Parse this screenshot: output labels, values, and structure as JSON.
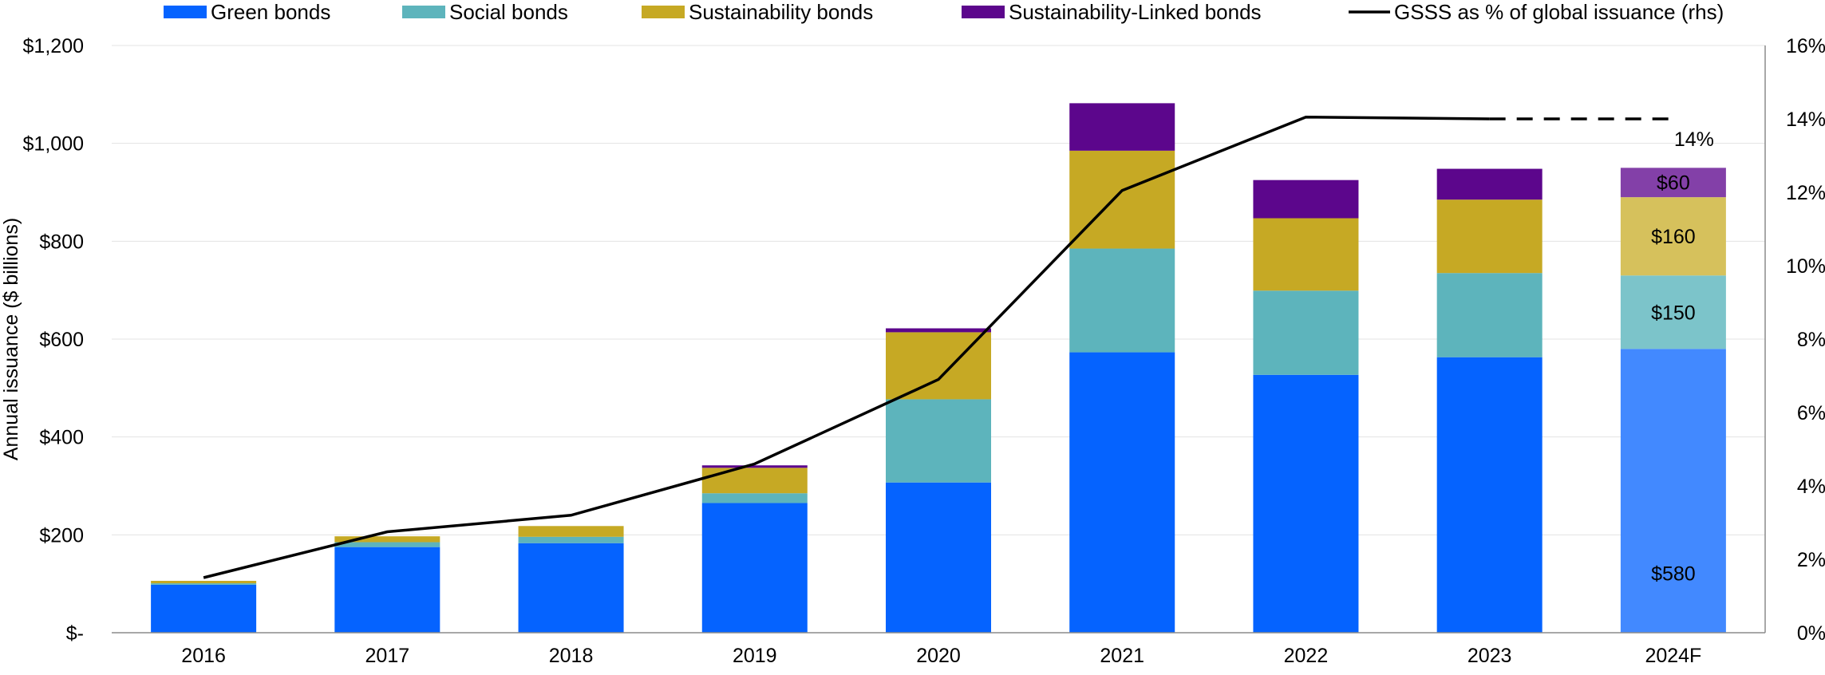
{
  "chart_data": {
    "type": "bar",
    "stacked": true,
    "categories": [
      "2016",
      "2017",
      "2018",
      "2019",
      "2020",
      "2021",
      "2022",
      "2023",
      "2024F"
    ],
    "series": [
      {
        "name": "Green bonds",
        "color": "#0563FF",
        "values": [
          98,
          175,
          183,
          265,
          307,
          573,
          527,
          563,
          580
        ]
      },
      {
        "name": "Social bonds",
        "color": "#5DB4BC",
        "values": [
          3,
          10,
          13,
          20,
          170,
          212,
          172,
          172,
          150
        ]
      },
      {
        "name": "Sustainability bonds",
        "color": "#C6A924",
        "values": [
          5,
          12,
          22,
          52,
          137,
          200,
          148,
          150,
          160
        ]
      },
      {
        "name": "Sustainability-Linked bonds",
        "color": "#5C068C",
        "values": [
          0,
          0,
          0,
          5,
          8,
          97,
          78,
          63,
          60
        ]
      }
    ],
    "forecast_category": "2024F",
    "forecast_colors": [
      "#4289FF",
      "#7CC4CA",
      "#D6C15C",
      "#8340A8"
    ],
    "line_series": {
      "name": "GSSS as % of global issuance (rhs)",
      "color": "#000000",
      "values": [
        1.5,
        2.75,
        3.2,
        4.6,
        6.9,
        12.05,
        14.05,
        14.0,
        14.0
      ],
      "dashed_from": "2023",
      "end_label": "14%"
    },
    "data_labels_2024F": [
      "$580",
      "$150",
      "$160",
      "$60"
    ],
    "ylabel": "Annual issuance ($ billions)",
    "ylim": [
      0,
      1200
    ],
    "yticks": [
      0,
      200,
      400,
      600,
      800,
      1000,
      1200
    ],
    "ytick_labels": [
      "$-",
      "$200",
      "$400",
      "$600",
      "$800",
      "$1,000",
      "$1,200"
    ],
    "y2lim": [
      0,
      16
    ],
    "y2ticks": [
      0,
      2,
      4,
      6,
      8,
      10,
      12,
      14,
      16
    ],
    "y2tick_labels": [
      "0%",
      "2%",
      "4%",
      "6%",
      "8%",
      "10%",
      "12%",
      "14%",
      "16%"
    ],
    "grid": true,
    "legend_position": "top"
  }
}
